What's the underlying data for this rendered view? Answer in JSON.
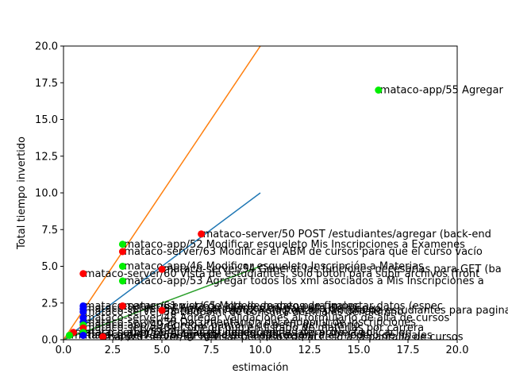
{
  "chart_data": {
    "type": "scatter",
    "title": "",
    "xlabel": "estimación",
    "ylabel": "Total tiempo invertido",
    "xlim": [
      0,
      20
    ],
    "ylim": [
      0,
      20
    ],
    "xticks": [
      "0.0",
      "2.5",
      "5.0",
      "7.5",
      "10.0",
      "12.5",
      "15.0",
      "17.5",
      "20.0"
    ],
    "yticks": [
      "0.0",
      "2.5",
      "5.0",
      "7.5",
      "10.0",
      "12.5",
      "15.0",
      "17.5",
      "20.0"
    ],
    "grid": false,
    "colors": {
      "red": "#ff0000",
      "green": "#00ee00",
      "blue": "#0000ff",
      "line_blue": "#1f77b4",
      "line_orange": "#ff7f0e",
      "line_green": "#2ca02c"
    },
    "lines": [
      {
        "name": "blue-trend",
        "color": "line_blue",
        "x": [
          0,
          10
        ],
        "y": [
          0,
          10
        ]
      },
      {
        "name": "orange-trend",
        "color": "line_orange",
        "x": [
          0,
          10
        ],
        "y": [
          0,
          20
        ]
      },
      {
        "name": "green-trend",
        "color": "line_green",
        "x": [
          0,
          10
        ],
        "y": [
          0,
          5
        ]
      }
    ],
    "points": [
      {
        "x": 16,
        "y": 17,
        "color": "green",
        "label": "mataco-app/55 Agregar"
      },
      {
        "x": 7,
        "y": 7.2,
        "color": "red",
        "label": "mataco-server/50 POST /estudiantes/agregar  (back-end"
      },
      {
        "x": 3,
        "y": 6.5,
        "color": "green",
        "label": "mataco-app/52 Modificar esqueleto Mis Inscripciones a Examenes"
      },
      {
        "x": 3,
        "y": 6,
        "color": "red",
        "label": "mataco-server/63 Modificar el ABM de cursos para que el curso vacío"
      },
      {
        "x": 3,
        "y": 5,
        "color": "green",
        "label": "mataco-app/46 Modificar esqueleto Inscripción a Materias"
      },
      {
        "x": 5,
        "y": 4.8,
        "color": "red",
        "label": "mataco-server/54 Generar las funciones necesarias para GET (ba"
      },
      {
        "x": 1,
        "y": 4.5,
        "color": "red",
        "label": "mataco-server/60 Vista de estudiantes, solo boton para subir archivos (front"
      },
      {
        "x": 3,
        "y": 4,
        "color": "green",
        "label": "mataco-app/53 Agregar todos los xml asociados a Mis Inscripciones a"
      },
      {
        "x": 1,
        "y": 2.3,
        "color": "blue",
        "label": "mataco-server/61 vista de alta de mapeo para importar datos (espec"
      },
      {
        "x": 3,
        "y": 2.3,
        "color": "red",
        "label": "mataco-server/65 Modelo de datos de finales"
      },
      {
        "x": 1,
        "y": 2.1,
        "color": "blue",
        "label": "mataco-server/57 Agregar campos de pantalla de mapeo"
      },
      {
        "x": 1,
        "y": 1.9,
        "color": "blue",
        "label": "mataco-server/58 Endpoint de consulta de finales del alumno"
      },
      {
        "x": 5,
        "y": 2,
        "color": "red",
        "label": "mataco-server/62 Refactorizar pantalla de estudiantes para paginacion"
      },
      {
        "x": 1,
        "y": 1.5,
        "color": "blue",
        "label": "mataco-server/48 Agregar validaciones al formulario de alta de cursos"
      },
      {
        "x": 1,
        "y": 1.2,
        "color": "blue",
        "label": "mataco-server/59 Documentacion del endpoint de inscripciones"
      },
      {
        "x": 1,
        "y": 1,
        "color": "green",
        "label": "mataco-app/49 Agregar pantalla de perfil del alumno"
      },
      {
        "x": 1,
        "y": 0.8,
        "color": "red",
        "label": "mataco-server/64 Corregir bug en listado de materias por carrera"
      },
      {
        "x": 0.5,
        "y": 0.5,
        "color": "red",
        "label": "mataco-server/66 Actualizar dependencias del proyecto"
      },
      {
        "x": 1,
        "y": 0.5,
        "color": "green",
        "label": "mataco-app/51 Ajustar estilos del menu lateral de la aplicacion"
      },
      {
        "x": 1,
        "y": 0.3,
        "color": "blue",
        "label": "mataco-server/56 Agregar tests unitarios para el modelo de finales"
      },
      {
        "x": 2,
        "y": 0.2,
        "color": "red",
        "label": "mataco-server/67 Revisar permisos de acceso a la pantalla de cursos"
      },
      {
        "x": 0.3,
        "y": 0.3,
        "color": "green",
        "label": "mataco-app/47 Cambiar icono de la aplicacion"
      }
    ]
  }
}
